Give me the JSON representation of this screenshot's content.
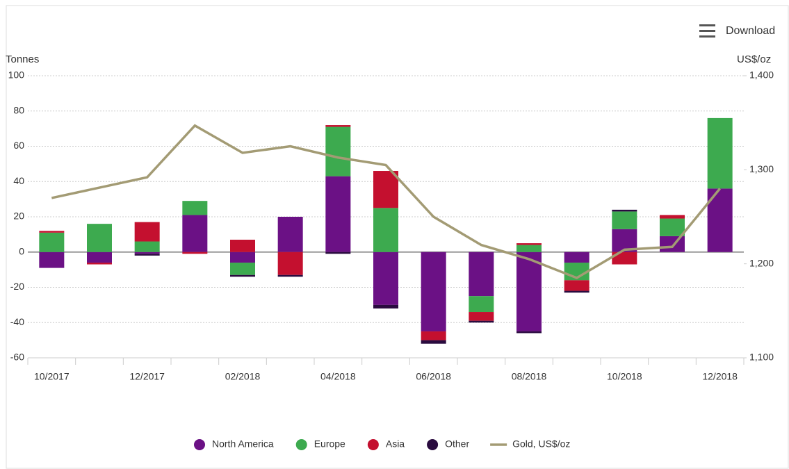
{
  "chart_data": {
    "type": "bar",
    "stacked": true,
    "ylabel": "Tonnes",
    "y2label": "US$/oz",
    "categories": [
      "10/2017",
      null,
      "12/2017",
      null,
      "02/2018",
      null,
      "04/2018",
      null,
      "06/2018",
      null,
      "08/2018",
      null,
      "10/2018",
      null,
      "12/2018"
    ],
    "series": [
      {
        "name": "North America",
        "color": "#6b1185",
        "values": [
          -9,
          -6,
          -1,
          21,
          -6,
          20,
          43,
          -30,
          -45,
          -25,
          -45,
          -6,
          13,
          9,
          36
        ]
      },
      {
        "name": "Europe",
        "color": "#3daa4f",
        "values": [
          11,
          16,
          6,
          8,
          -7,
          0,
          28,
          25,
          0,
          -9,
          4,
          -10,
          10,
          10,
          40
        ]
      },
      {
        "name": "Asia",
        "color": "#c4102f",
        "values": [
          1,
          -1,
          11,
          -1,
          7,
          -13,
          1,
          21,
          -5,
          -5,
          1,
          -6,
          -7,
          2,
          0
        ]
      },
      {
        "name": "Other",
        "color": "#2a0b3f",
        "values": [
          0,
          0,
          -1,
          0,
          -1,
          -1,
          -1,
          -2,
          -2,
          -1,
          -1,
          -1,
          1,
          0,
          0
        ]
      },
      {
        "name": "Gold, US$/oz",
        "color": "#a39b74",
        "axis": "y2",
        "type": "line",
        "values": [
          1270,
          1281,
          1292,
          1347,
          1318,
          1325,
          1313,
          1305,
          1250,
          1220,
          1205,
          1185,
          1215,
          1218,
          1280
        ]
      }
    ],
    "ylim": [
      -60,
      100
    ],
    "yticks": [
      -60,
      -40,
      -20,
      0,
      20,
      40,
      60,
      80,
      100
    ],
    "y2lim": [
      1100,
      1400
    ],
    "y2ticks": [
      {
        "value": 1100,
        "label": "1,100"
      },
      {
        "value": 1200,
        "label": "1,200"
      },
      {
        "value": 1300,
        "label": "1,300"
      },
      {
        "value": 1400,
        "label": "1,400"
      }
    ],
    "grid": true,
    "legend": "bottom"
  },
  "ui": {
    "download": "Download"
  }
}
